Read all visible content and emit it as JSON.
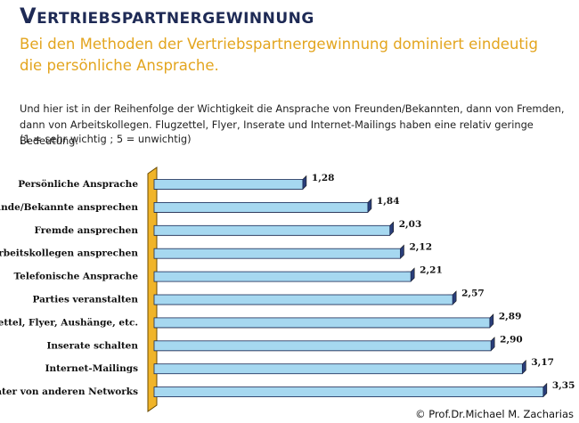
{
  "chart_data": {
    "type": "hbar",
    "title": "Vertriebspartnergewinnung",
    "subtitle": "Bei den Methoden der Vertriebspartnergewinnung dominiert eindeutig die persönliche Ansprache.",
    "description": "Und hier ist in der Reihenfolge der Wichtigkeit die Ansprache von Freunden/Bekannten, dann von Fremden, dann von Arbeitskollegen. Flugzettel, Flyer, Inserate und Internet-Mailings haben eine relativ geringe Bedeutung.",
    "note": "(1 = sehr wichtig ; 5 = unwichtig)",
    "categories": [
      "Persönliche Ansprache",
      "Freunde/Bekannte ansprechen",
      "Fremde ansprechen",
      "Arbeitskollegen ansprechen",
      "Telefonische Ansprache",
      "Parties veranstalten",
      "Flugzettel, Flyer, Aushänge, etc.",
      "Inserate schalten",
      "Internet-Mailings",
      "Berater von anderen Networks"
    ],
    "values": [
      1.28,
      1.84,
      2.03,
      2.12,
      2.21,
      2.57,
      2.89,
      2.9,
      3.17,
      3.35
    ],
    "value_labels": [
      "1,28",
      "1,84",
      "2,03",
      "2,12",
      "2,21",
      "2,57",
      "2,89",
      "2,90",
      "3,17",
      "3,35"
    ],
    "color": "#a6d8f0",
    "copyright": "© Prof.Dr.Michael M. Zacharias"
  }
}
